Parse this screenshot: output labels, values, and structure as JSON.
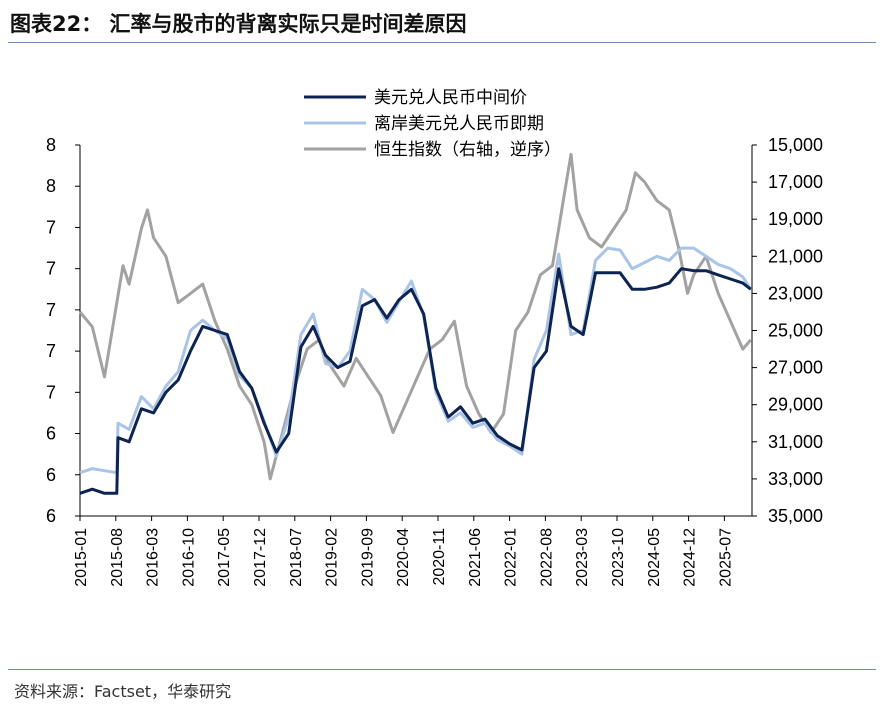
{
  "header": {
    "title": "图表22：  汇率与股市的背离实际只是时间差原因"
  },
  "footer": {
    "source": "资料来源：Factset，华泰研究"
  },
  "colors": {
    "usdcny_mid": "#0d2453",
    "usdcnh_spot": "#a9c4e6",
    "hsi": "#a2a2a2",
    "rule": "#6f8db3"
  },
  "chart_data": {
    "type": "line",
    "title": "汇率与股市的背离实际只是时间差原因",
    "legend": [
      "美元兑人民币中间价",
      "离岸美元兑人民币即期",
      "恒生指数（右轴，逆序）"
    ],
    "y_left": {
      "range": [
        6.0,
        7.8
      ],
      "ticks": [
        6.0,
        6.2,
        6.4,
        6.6,
        6.8,
        7.0,
        7.2,
        7.4,
        7.6,
        7.8
      ],
      "tick_labels": [
        "6",
        "6",
        "6",
        "7",
        "7",
        "7",
        "7",
        "7",
        "8",
        "8"
      ]
    },
    "y_right": {
      "range": [
        35000,
        15000
      ],
      "inverted": true,
      "ticks": [
        15000,
        17000,
        19000,
        21000,
        23000,
        25000,
        27000,
        29000,
        31000,
        33000,
        35000
      ],
      "tick_labels": [
        "15,000",
        "17,000",
        "19,000",
        "21,000",
        "23,000",
        "25,000",
        "27,000",
        "29,000",
        "31,000",
        "33,000",
        "35,000"
      ]
    },
    "x": {
      "start": 2015.0,
      "end": 2025.95,
      "ticks": [
        2015.0,
        2015.5833,
        2016.1667,
        2016.75,
        2017.3333,
        2017.9167,
        2018.5,
        2019.0833,
        2019.6667,
        2020.25,
        2020.8333,
        2021.4167,
        2022.0,
        2022.5833,
        2023.1667,
        2023.75,
        2024.3333,
        2024.9167,
        2025.5
      ],
      "tick_labels": [
        "2015-01",
        "2015-08",
        "2016-03",
        "2016-10",
        "2017-05",
        "2017-12",
        "2018-07",
        "2019-02",
        "2019-09",
        "2020-04",
        "2020-11",
        "2021-06",
        "2022-01",
        "2022-08",
        "2023-03",
        "2023-10",
        "2024-05",
        "2024-12",
        "2025-07"
      ]
    },
    "series": [
      {
        "name": "美元兑人民币中间价",
        "axis": "left",
        "x": [
          2015.0,
          2015.2,
          2015.4,
          2015.6,
          2015.62,
          2015.8,
          2016.0,
          2016.2,
          2016.4,
          2016.6,
          2016.8,
          2017.0,
          2017.2,
          2017.4,
          2017.6,
          2017.8,
          2018.0,
          2018.2,
          2018.4,
          2018.6,
          2018.8,
          2019.0,
          2019.2,
          2019.4,
          2019.6,
          2019.8,
          2020.0,
          2020.2,
          2020.4,
          2020.6,
          2020.8,
          2021.0,
          2021.2,
          2021.4,
          2021.6,
          2021.8,
          2022.0,
          2022.2,
          2022.4,
          2022.6,
          2022.8,
          2023.0,
          2023.2,
          2023.4,
          2023.6,
          2023.8,
          2024.0,
          2024.2,
          2024.4,
          2024.6,
          2024.8,
          2025.0,
          2025.2,
          2025.4,
          2025.6,
          2025.8,
          2025.93
        ],
        "y": [
          6.11,
          6.13,
          6.11,
          6.11,
          6.38,
          6.36,
          6.52,
          6.5,
          6.6,
          6.66,
          6.8,
          6.92,
          6.9,
          6.88,
          6.7,
          6.62,
          6.45,
          6.31,
          6.4,
          6.82,
          6.92,
          6.78,
          6.72,
          6.75,
          7.02,
          7.05,
          6.96,
          7.05,
          7.1,
          6.98,
          6.62,
          6.48,
          6.53,
          6.45,
          6.47,
          6.39,
          6.35,
          6.32,
          6.72,
          6.8,
          7.2,
          6.92,
          6.88,
          7.18,
          7.18,
          7.18,
          7.1,
          7.1,
          7.11,
          7.13,
          7.2,
          7.19,
          7.19,
          7.17,
          7.15,
          7.13,
          7.1
        ]
      },
      {
        "name": "离岸美元兑人民币即期",
        "axis": "left",
        "x": [
          2015.0,
          2015.2,
          2015.4,
          2015.6,
          2015.62,
          2015.8,
          2016.0,
          2016.2,
          2016.4,
          2016.6,
          2016.8,
          2017.0,
          2017.2,
          2017.4,
          2017.6,
          2017.8,
          2018.0,
          2018.2,
          2018.4,
          2018.6,
          2018.8,
          2019.0,
          2019.2,
          2019.4,
          2019.6,
          2019.8,
          2020.0,
          2020.2,
          2020.4,
          2020.6,
          2020.8,
          2021.0,
          2021.2,
          2021.4,
          2021.6,
          2021.8,
          2022.0,
          2022.2,
          2022.4,
          2022.6,
          2022.8,
          2023.0,
          2023.2,
          2023.4,
          2023.6,
          2023.8,
          2024.0,
          2024.2,
          2024.4,
          2024.6,
          2024.8,
          2025.0,
          2025.2,
          2025.4,
          2025.6,
          2025.8,
          2025.93
        ],
        "y": [
          6.21,
          6.23,
          6.22,
          6.21,
          6.45,
          6.42,
          6.58,
          6.52,
          6.63,
          6.7,
          6.9,
          6.95,
          6.9,
          6.86,
          6.68,
          6.62,
          6.46,
          6.29,
          6.48,
          6.88,
          6.98,
          6.74,
          6.72,
          6.8,
          7.1,
          7.05,
          6.94,
          7.04,
          7.14,
          6.97,
          6.6,
          6.46,
          6.5,
          6.43,
          6.45,
          6.37,
          6.34,
          6.3,
          6.76,
          6.9,
          7.27,
          6.88,
          6.9,
          7.24,
          7.3,
          7.29,
          7.2,
          7.23,
          7.26,
          7.24,
          7.3,
          7.3,
          7.26,
          7.22,
          7.2,
          7.16,
          7.1
        ]
      },
      {
        "name": "恒生指数（右轴，逆序）",
        "axis": "right",
        "x": [
          2015.0,
          2015.2,
          2015.4,
          2015.6,
          2015.7,
          2015.8,
          2016.0,
          2016.1,
          2016.2,
          2016.4,
          2016.6,
          2016.8,
          2017.0,
          2017.2,
          2017.4,
          2017.6,
          2017.8,
          2018.0,
          2018.1,
          2018.3,
          2018.5,
          2018.7,
          2018.9,
          2019.0,
          2019.3,
          2019.5,
          2019.7,
          2019.9,
          2020.1,
          2020.3,
          2020.5,
          2020.7,
          2020.9,
          2021.1,
          2021.3,
          2021.5,
          2021.7,
          2021.9,
          2022.1,
          2022.3,
          2022.5,
          2022.7,
          2022.8,
          2022.9,
          2023.0,
          2023.1,
          2023.3,
          2023.5,
          2023.7,
          2023.9,
          2024.05,
          2024.2,
          2024.4,
          2024.6,
          2024.75,
          2024.9,
          2025.0,
          2025.2,
          2025.4,
          2025.6,
          2025.8,
          2025.93
        ],
        "y": [
          24000,
          24800,
          27500,
          23500,
          21500,
          22500,
          19500,
          18500,
          20000,
          21000,
          23500,
          23000,
          22500,
          24500,
          26000,
          28000,
          29000,
          31000,
          33000,
          30500,
          28000,
          26000,
          25500,
          26500,
          28000,
          26500,
          27500,
          28500,
          30500,
          29000,
          27500,
          26000,
          25500,
          24500,
          28000,
          29500,
          30500,
          29500,
          25000,
          24000,
          22000,
          21500,
          19500,
          17500,
          15500,
          18500,
          20000,
          20500,
          19500,
          18500,
          16500,
          17000,
          18000,
          18500,
          20500,
          23000,
          22000,
          21000,
          23000,
          24500,
          26000,
          25500
        ]
      }
    ]
  }
}
